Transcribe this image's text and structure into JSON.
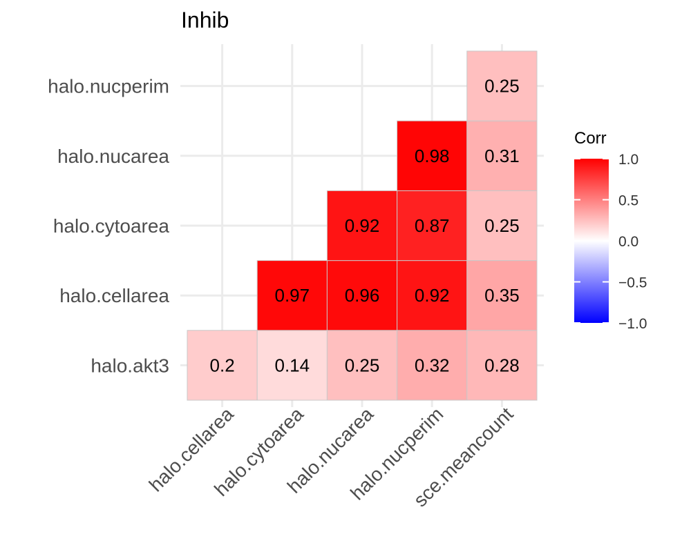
{
  "chart_data": {
    "type": "heatmap",
    "title": "Inhib",
    "x_categories": [
      "halo.cellarea",
      "halo.cytoarea",
      "halo.nucarea",
      "halo.nucperim",
      "sce.meancount"
    ],
    "y_categories": [
      "halo.akt3",
      "halo.cellarea",
      "halo.cytoarea",
      "halo.nucarea",
      "halo.nucperim"
    ],
    "cells": [
      {
        "x": "halo.cellarea",
        "y": "halo.akt3",
        "value": 0.2,
        "label": "0.2"
      },
      {
        "x": "halo.cytoarea",
        "y": "halo.akt3",
        "value": 0.14,
        "label": "0.14"
      },
      {
        "x": "halo.nucarea",
        "y": "halo.akt3",
        "value": 0.25,
        "label": "0.25"
      },
      {
        "x": "halo.nucperim",
        "y": "halo.akt3",
        "value": 0.32,
        "label": "0.32"
      },
      {
        "x": "sce.meancount",
        "y": "halo.akt3",
        "value": 0.28,
        "label": "0.28"
      },
      {
        "x": "halo.cytoarea",
        "y": "halo.cellarea",
        "value": 0.97,
        "label": "0.97"
      },
      {
        "x": "halo.nucarea",
        "y": "halo.cellarea",
        "value": 0.96,
        "label": "0.96"
      },
      {
        "x": "halo.nucperim",
        "y": "halo.cellarea",
        "value": 0.92,
        "label": "0.92"
      },
      {
        "x": "sce.meancount",
        "y": "halo.cellarea",
        "value": 0.35,
        "label": "0.35"
      },
      {
        "x": "halo.nucarea",
        "y": "halo.cytoarea",
        "value": 0.92,
        "label": "0.92"
      },
      {
        "x": "halo.nucperim",
        "y": "halo.cytoarea",
        "value": 0.87,
        "label": "0.87"
      },
      {
        "x": "sce.meancount",
        "y": "halo.cytoarea",
        "value": 0.25,
        "label": "0.25"
      },
      {
        "x": "halo.nucperim",
        "y": "halo.nucarea",
        "value": 0.98,
        "label": "0.98"
      },
      {
        "x": "sce.meancount",
        "y": "halo.nucarea",
        "value": 0.31,
        "label": "0.31"
      },
      {
        "x": "sce.meancount",
        "y": "halo.nucperim",
        "value": 0.25,
        "label": "0.25"
      }
    ],
    "legend": {
      "title": "Corr",
      "ticks": [
        1.0,
        0.5,
        0.0,
        -0.5,
        -1.0
      ],
      "tick_labels": [
        "1.0",
        "0.5",
        "0.0",
        "−0.5",
        "−1.0"
      ],
      "range": [
        -1,
        1
      ],
      "colors": {
        "low": "#0000ff",
        "mid": "#ffffff",
        "high": "#ff0000"
      },
      "placement": "right"
    },
    "grid": true
  }
}
